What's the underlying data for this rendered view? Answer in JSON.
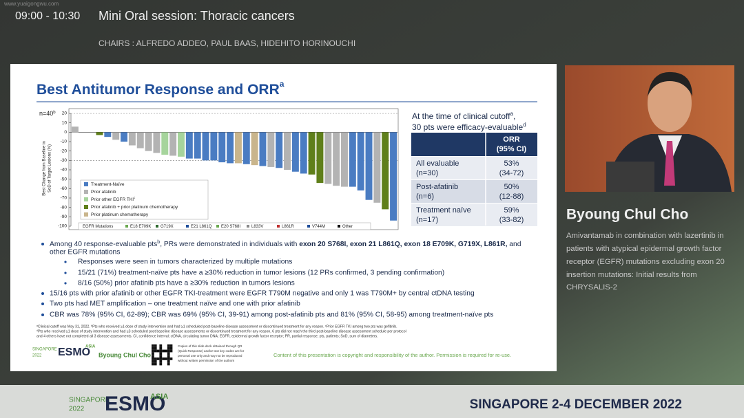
{
  "header": {
    "time": "09:00 - 10:30",
    "title": "Mini Oral session: Thoracic cancers",
    "chairs": "CHAIRS : ALFREDO ADDEO, PAUL BAAS, HIDEHITO HORINOUCHI",
    "watermark": "www.yuaigongwu.com"
  },
  "slide": {
    "title": "Best Antitumor Response and ORR",
    "title_sup": "a",
    "n_label": "n=40",
    "n_sup": "b",
    "cutoff": {
      "line1": "At the time of clinical cutoff",
      "sup1": "a",
      ",": ",",
      "line2": "30 pts were efficacy-evaluable",
      "sup2": "d"
    },
    "table": {
      "header": [
        "ORR",
        "(95% CI)"
      ],
      "rows": [
        [
          [
            "All evaluable",
            "(n=30)"
          ],
          [
            "53%",
            "(34-72)"
          ]
        ],
        [
          [
            "Post-afatinib",
            "(n=6)"
          ],
          [
            "50%",
            "(12-88)"
          ]
        ],
        [
          [
            "Treatment naïve",
            "(n=17)"
          ],
          [
            "59%",
            "(33-82)"
          ]
        ]
      ]
    },
    "bullets": [
      {
        "a": "Among 40 response-evaluable pts",
        "sup": "b",
        "b": ", PRs were demonstrated in individuals with ",
        "bold": "exon 20 S768I, exon 21 L861Q, exon 18 E709K, G719X, L861R,",
        "c": " and",
        "d": "other EGFR mutations"
      },
      {
        "text": "Responses were seen in tumors characterized by multiple mutations"
      },
      {
        "text": "15/21 (71%) treatment-naïve pts have a ≥30% reduction in tumor lesions (12 PRs confirmed, 3 pending confirmation)"
      },
      {
        "text": "8/16 (50%) prior afatinib pts have a ≥30% reduction in tumors lesions"
      },
      {
        "text": "15/16 pts with prior afatinib or other EGFR TKI-treatment were EGFR T790M negative and only 1 was T790M+ by central ctDNA testing"
      },
      {
        "text": "Two pts had MET amplification – one treatment naïve and one with prior afatinib"
      },
      {
        "text": "CBR was 78% (95% CI, 62-89); CBR was 69% (95% CI, 39-91) among post-afatinib pts and 81% (95% CI, 58-95) among treatment-naïve pts"
      }
    ],
    "footnotes": [
      "ᵃClinical cutoff was May 31, 2022. ᵇPts who received ≥1 dose of study intervention and had ≥1 scheduled post-baseline disease assessment or discontinued treatment for any reason. ᶜPrior EGFR TKI among two pts was gefitinib.",
      "ᵈPts who received ≥1 dose of study intervention and had ≥3 scheduled post baseline disease assessments or discontinued treatment for any reason, 6 pts did not reach the third post-baseline disease assessment schedule per protocol",
      "and 4 others have not completed all 3 disease assessments. CI, confidence interval; ctDNA, circulating tumor DNA; EGFR, epidermal growth factor receptor; PR, partial response; pts, patients; SoD, sum of diameters."
    ],
    "footer": {
      "logo_city": "SINGAPORE",
      "logo_year": "2022",
      "logo_esmo": "ESMO",
      "logo_asia": "ASIA",
      "presenter": "Byoung Chul Cho",
      "copy_note": [
        "Copies of this slide deck obtained through QR",
        "(Quick Response) and/or text key codes are for",
        "personal use only and may not be reproduced",
        "without written permission of the authors"
      ],
      "copyright": "Content of this presentation is copyright and responsibility of the author. Permission is required for re-use."
    }
  },
  "chart_data": {
    "type": "bar",
    "ylabel": [
      "Best Change from Baseline in",
      "SoD of Target Lesions (%)"
    ],
    "values": [
      6,
      0,
      0,
      -3,
      -5,
      -8,
      -10,
      -14,
      -17,
      -20,
      -22,
      -24,
      -25,
      -26,
      -28,
      -28,
      -30,
      -30,
      -32,
      -33,
      -33,
      -34,
      -35,
      -36,
      -37,
      -38,
      -40,
      -42,
      -44,
      -45,
      -54,
      -55,
      -57,
      -58,
      -58,
      -62,
      -72,
      -75,
      -82,
      -94
    ],
    "colors": [
      "#b3b3b3",
      "#b3b3b3",
      "#b3b3b3",
      "#5f7f1a",
      "#4a7cc2",
      "#b3b3b3",
      "#4a7cc2",
      "#b3b3b3",
      "#b3b3b3",
      "#b3b3b3",
      "#b3b3b3",
      "#a6d49c",
      "#b3b3b3",
      "#a6d49c",
      "#4a7cc2",
      "#4a7cc2",
      "#4a7cc2",
      "#4a7cc2",
      "#4a7cc2",
      "#4a7cc2",
      "#c9b58c",
      "#4a7cc2",
      "#c9b58c",
      "#4a7cc2",
      "#b3b3b3",
      "#4a7cc2",
      "#b3b3b3",
      "#4a7cc2",
      "#4a7cc2",
      "#5f7f1a",
      "#5f7f1a",
      "#b3b3b3",
      "#b3b3b3",
      "#b3b3b3",
      "#4a7cc2",
      "#4a7cc2",
      "#4a7cc2",
      "#b3b3b3",
      "#5f7f1a",
      "#4a7cc2"
    ],
    "ylim": [
      -100,
      20
    ],
    "yticks": [
      20,
      10,
      0,
      -10,
      -20,
      -30,
      -40,
      -50,
      -60,
      -70,
      -80,
      -90,
      -100
    ],
    "reference_lines": [
      20,
      -30
    ],
    "legend": [
      {
        "name": "Treatment-Naïve",
        "color": "#4a7cc2"
      },
      {
        "name": "Prior afatinib",
        "color": "#b3b3b3"
      },
      {
        "name": "Prior other EGFR TKI",
        "sup": "c",
        "color": "#a6d49c"
      },
      {
        "name": "Prior afatinib + prior platinum chemotherapy",
        "color": "#5f7f1a"
      },
      {
        "name": "Prior platinum chemotherapy",
        "color": "#c9b58c"
      }
    ],
    "mutation_legend": {
      "title": "EGFR Mutations",
      "items": [
        "E18 E709K",
        "G719X",
        "E21 L861Q",
        "E20 S768I",
        "L833V",
        "L861R",
        "V744M",
        "Other"
      ]
    }
  },
  "speaker": {
    "name": "Byoung Chul Cho",
    "abstract": [
      "Amivantamab in combination with lazertinib in",
      "patients with atypical epidermal growth factor",
      "receptor (EGFR) mutations excluding exon 20",
      "insertion mutations: Initial results from",
      "CHRYSALIS-2"
    ]
  },
  "event": {
    "city": "SINGAPORE",
    "year": "2022",
    "esmo": "ESMO",
    "asia": "ASIA",
    "dates": "SINGAPORE 2-4 DECEMBER 2022"
  }
}
